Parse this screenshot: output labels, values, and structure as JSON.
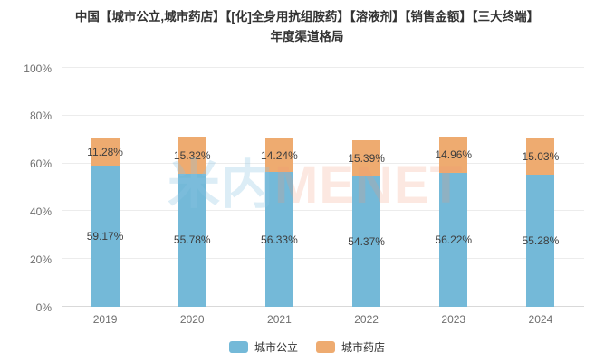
{
  "title": {
    "line1": "中国【城市公立,城市药店】【[化]全身用抗组胺药】【溶液剂】【销售金额】【三大终端】",
    "line2": "年度渠道格局"
  },
  "watermark": {
    "cjk": "米内",
    "latin": "MENET"
  },
  "colors": {
    "series_blue": "#74b9d8",
    "series_orange": "#eeab70",
    "axis_text": "#6e6e6e",
    "value_label": "#3d3d3d",
    "title_text": "#333333"
  },
  "chart_data": {
    "type": "bar",
    "stacked": true,
    "title": "中国【城市公立,城市药店】【[化]全身用抗组胺药】【溶液剂】【销售金额】【三大终端】年度渠道格局",
    "categories": [
      "2019",
      "2020",
      "2021",
      "2022",
      "2023",
      "2024"
    ],
    "series": [
      {
        "name": "城市公立",
        "color": "#74b9d8",
        "values": [
          59.17,
          55.78,
          56.33,
          54.37,
          56.22,
          55.28
        ]
      },
      {
        "name": "城市药店",
        "color": "#eeab70",
        "values": [
          11.28,
          15.32,
          14.24,
          15.39,
          14.96,
          15.03
        ]
      }
    ],
    "value_labels": [
      [
        "59.17%",
        "55.78%",
        "56.33%",
        "54.37%",
        "56.22%",
        "55.28%"
      ],
      [
        "11.28%",
        "15.32%",
        "14.24%",
        "15.39%",
        "14.96%",
        "15.03%"
      ]
    ],
    "xlabel": "",
    "ylabel": "",
    "ylim": [
      0,
      100
    ],
    "y_ticks": [
      "0%",
      "20%",
      "40%",
      "60%",
      "80%",
      "100%"
    ],
    "grid": true,
    "legend_position": "bottom"
  }
}
